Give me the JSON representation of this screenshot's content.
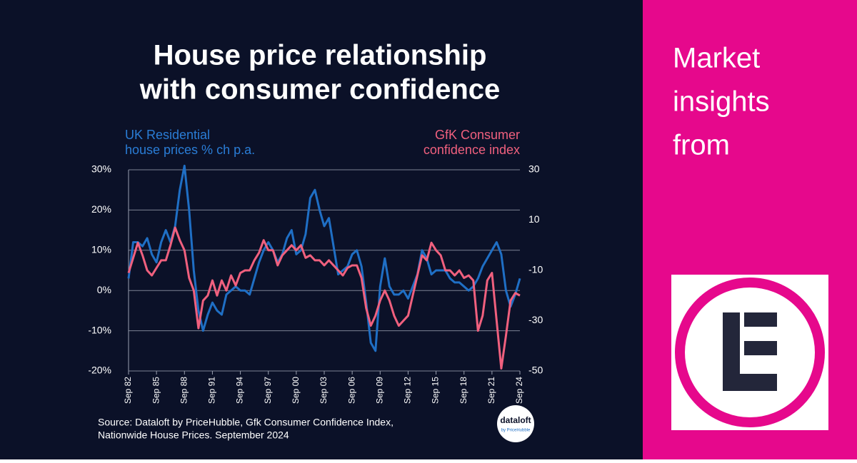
{
  "chart_data": {
    "type": "line",
    "title": [
      "House price relationship",
      "with consumer confidence"
    ],
    "y_label": [
      "UK Residential",
      "house prices % ch p.a."
    ],
    "y2_label": [
      "GfK Consumer",
      "confidence index"
    ],
    "source": [
      "Source: Dataloft by PriceHubble, Gfk Consumer Confidence Index,",
      "Nationwide House Prices. September 2024"
    ],
    "logo": [
      "dataloft",
      "by PriceHubble"
    ],
    "x": [
      1982.75,
      1983.25,
      1983.75,
      1984.25,
      1984.75,
      1985.25,
      1985.75,
      1986.25,
      1986.75,
      1987.25,
      1987.75,
      1988.25,
      1988.75,
      1989.25,
      1989.75,
      1990.25,
      1990.75,
      1991.25,
      1991.75,
      1992.25,
      1992.75,
      1993.25,
      1993.75,
      1994.25,
      1994.75,
      1995.25,
      1995.75,
      1996.25,
      1996.75,
      1997.25,
      1997.75,
      1998.25,
      1998.75,
      1999.25,
      1999.75,
      2000.25,
      2000.75,
      2001.25,
      2001.75,
      2002.25,
      2002.75,
      2003.25,
      2003.75,
      2004.25,
      2004.75,
      2005.25,
      2005.75,
      2006.25,
      2006.75,
      2007.25,
      2007.75,
      2008.25,
      2008.75,
      2009.25,
      2009.75,
      2010.25,
      2010.75,
      2011.25,
      2011.75,
      2012.25,
      2012.75,
      2013.25,
      2013.75,
      2014.25,
      2014.75,
      2015.25,
      2015.75,
      2016.25,
      2016.75,
      2017.25,
      2017.75,
      2018.25,
      2018.75,
      2019.25,
      2019.75,
      2020.25,
      2020.75,
      2021.25,
      2021.75,
      2022.25,
      2022.75,
      2023.25,
      2023.75,
      2024.25,
      2024.75
    ],
    "series": [
      {
        "name": "UK Residential house prices % ch p.a.",
        "color": "#1f6fc5",
        "values": [
          3,
          12,
          12,
          11,
          13,
          9,
          7,
          12,
          15,
          12,
          16,
          25,
          31,
          20,
          5,
          -5,
          -10,
          -6,
          -3,
          -5,
          -6,
          -1,
          0,
          1,
          0,
          0,
          -1,
          3,
          7,
          10,
          12,
          10,
          7,
          9,
          13,
          15,
          9,
          10,
          14,
          23,
          25,
          20,
          16,
          18,
          11,
          4,
          5,
          6,
          9,
          10,
          6,
          -3,
          -13,
          -15,
          1,
          8,
          1,
          -1,
          -1,
          0,
          -2,
          1,
          4,
          10,
          8,
          4,
          5,
          5,
          5,
          3,
          2,
          2,
          1,
          0,
          1,
          3,
          6,
          8,
          10,
          12,
          9,
          0,
          -4,
          -1,
          3
        ]
      },
      {
        "name": "GfK Consumer confidence index",
        "color": "#f0607e",
        "axis": "y2",
        "values": [
          -11,
          -5,
          1,
          -4,
          -10,
          -12,
          -9,
          -6,
          -6,
          0,
          7,
          2,
          -2,
          -13,
          -18,
          -33,
          -22,
          -20,
          -14,
          -20,
          -14,
          -18,
          -12,
          -16,
          -11,
          -10,
          -10,
          -6,
          -3,
          2,
          -2,
          -2,
          -8,
          -4,
          -2,
          0,
          -2,
          0,
          -5,
          -4,
          -6,
          -6,
          -8,
          -6,
          -8,
          -10,
          -12,
          -9,
          -8,
          -8,
          -13,
          -25,
          -32,
          -28,
          -22,
          -18,
          -22,
          -28,
          -32,
          -30,
          -28,
          -20,
          -12,
          -4,
          -6,
          1,
          -2,
          -4,
          -10,
          -10,
          -12,
          -10,
          -13,
          -12,
          -14,
          -34,
          -28,
          -14,
          -11,
          -30,
          -49,
          -36,
          -22,
          -19,
          -20
        ]
      }
    ],
    "xlim": [
      1982.75,
      2024.75
    ],
    "xticks": [
      {
        "value": 1982.75,
        "label": "Sep 82"
      },
      {
        "value": 1985.75,
        "label": "Sep 85"
      },
      {
        "value": 1988.75,
        "label": "Sep 88"
      },
      {
        "value": 1991.75,
        "label": "Sep 91"
      },
      {
        "value": 1994.75,
        "label": "Sep 94"
      },
      {
        "value": 1997.75,
        "label": "Sep 97"
      },
      {
        "value": 2000.75,
        "label": "Sep 00"
      },
      {
        "value": 2003.75,
        "label": "Sep 03"
      },
      {
        "value": 2006.75,
        "label": "Sep 06"
      },
      {
        "value": 2009.75,
        "label": "Sep 09"
      },
      {
        "value": 2012.75,
        "label": "Sep 12"
      },
      {
        "value": 2015.75,
        "label": "Sep 15"
      },
      {
        "value": 2018.75,
        "label": "Sep 18"
      },
      {
        "value": 2021.75,
        "label": "Sep 21"
      },
      {
        "value": 2024.75,
        "label": "Sep 24"
      }
    ],
    "ylim": [
      -20,
      30
    ],
    "yticks": [
      {
        "value": 30,
        "label": "30%"
      },
      {
        "value": 20,
        "label": "20%"
      },
      {
        "value": 10,
        "label": "10%"
      },
      {
        "value": 0,
        "label": "0%"
      },
      {
        "value": -10,
        "label": "-10%"
      },
      {
        "value": -20,
        "label": "-20%"
      }
    ],
    "y2lim": [
      -50,
      30
    ],
    "y2ticks": [
      30,
      10,
      -10,
      -30,
      -50
    ],
    "grid": true
  },
  "sidebar": {
    "heading": [
      "Market",
      "insights",
      "from"
    ]
  }
}
